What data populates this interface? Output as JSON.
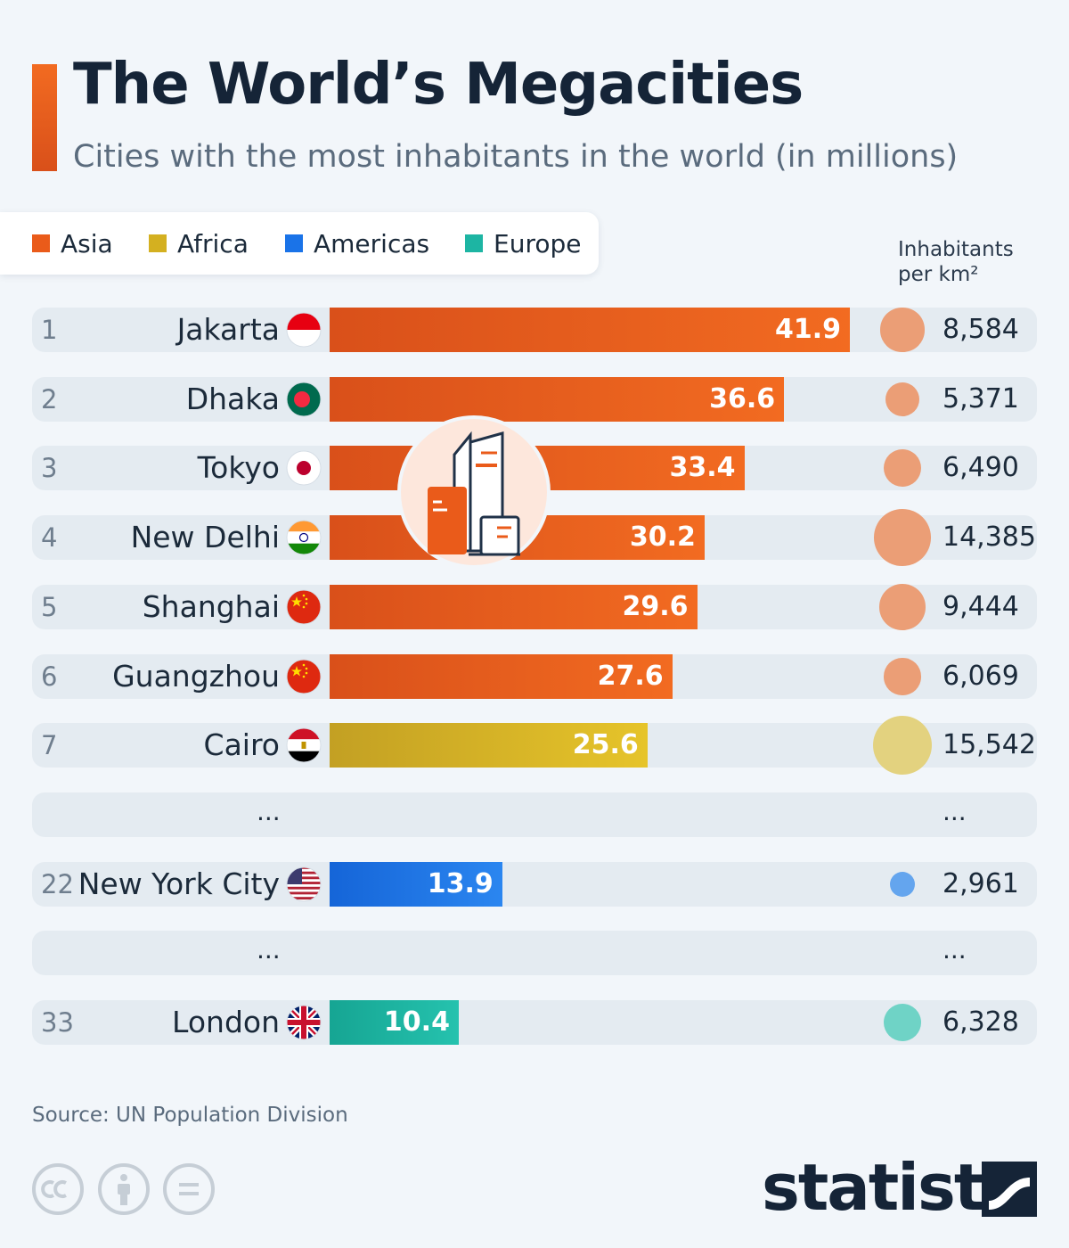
{
  "header": {
    "title": "The World’s Megacities",
    "subtitle": "Cities with the most inhabitants in the world (in millions)"
  },
  "legend": [
    {
      "label": "Asia",
      "color": "#ea5b1a"
    },
    {
      "label": "Africa",
      "color": "#d4b020"
    },
    {
      "label": "Americas",
      "color": "#1a73e8"
    },
    {
      "label": "Europe",
      "color": "#1db5a3"
    }
  ],
  "density_header": {
    "line1": "Inhabitants",
    "line2": "per km²"
  },
  "ellipsis": "...",
  "chart_data": {
    "type": "bar",
    "orientation": "horizontal",
    "title": "The World’s Megacities",
    "subtitle": "Cities with the most inhabitants in the world (in millions)",
    "categories": [
      "Jakarta",
      "Dhaka",
      "Tokyo",
      "New Delhi",
      "Shanghai",
      "Guangzhou",
      "Cairo",
      "New York City",
      "London"
    ],
    "ranks": [
      1,
      2,
      3,
      4,
      5,
      6,
      7,
      22,
      33
    ],
    "values": [
      41.9,
      36.6,
      33.4,
      30.2,
      29.6,
      27.6,
      25.6,
      13.9,
      10.4
    ],
    "value_labels": [
      "41.9",
      "36.6",
      "33.4",
      "30.2",
      "29.6",
      "27.6",
      "25.6",
      "13.9",
      "10.4"
    ],
    "regions": [
      "Asia",
      "Asia",
      "Asia",
      "Asia",
      "Asia",
      "Asia",
      "Africa",
      "Americas",
      "Europe"
    ],
    "density": [
      8584,
      5371,
      6490,
      14385,
      9444,
      6069,
      15542,
      2961,
      6328
    ],
    "density_labels": [
      "8,584",
      "5,371",
      "6,490",
      "14,385",
      "9,444",
      "6,069",
      "15,542",
      "2,961",
      "6,328"
    ],
    "region_colors": {
      "Asia": "#ea5b1a",
      "Africa": "#d4b020",
      "Americas": "#1a73e8",
      "Europe": "#1db5a3"
    },
    "gaps_after_index": [
      6,
      7
    ]
  },
  "footer": {
    "source": "Source: UN Population Division",
    "brand": "statista"
  }
}
